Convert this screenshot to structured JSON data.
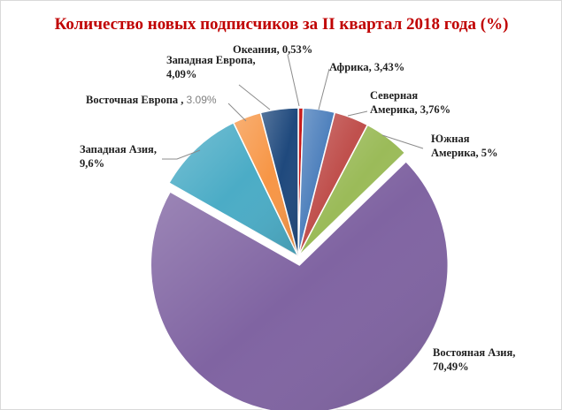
{
  "chart_data": {
    "type": "pie",
    "title": "Количество новых подписчиков за II квартал 2018 года (%)",
    "slices": [
      {
        "label": "Океания",
        "value": 0.53,
        "display": "Океания, 0,53%",
        "color": "#c00000"
      },
      {
        "label": "Африка",
        "value": 3.43,
        "display": "Африка, 3,43%",
        "color": "#4f81bd"
      },
      {
        "label": "Северная Америка",
        "value": 3.76,
        "display": "Северная Америка, 3,76%",
        "color": "#c0504d"
      },
      {
        "label": "Южная Америка",
        "value": 5,
        "display": "Южная Америка, 5%",
        "color": "#9bbb59"
      },
      {
        "label": "Востояная Азия",
        "value": 70.49,
        "display": "Востояная Азия, 70,49%",
        "color": "#8064a2"
      },
      {
        "label": "Западная Азия",
        "value": 9.6,
        "display": "Западная Азия, 9,6%",
        "color": "#4bacc6"
      },
      {
        "label": "Восточная Европа",
        "value": 3.09,
        "display": "Восточная Европа , 3.09%",
        "color": "#f79646"
      },
      {
        "label": "Западная Европа",
        "value": 4.09,
        "display": "Западная Европа, 4,09%",
        "color": "#1f497d"
      }
    ],
    "title_color": "#c00000"
  },
  "labels": {
    "oceania": "Океания, 0,53%",
    "africa": "Африка, 3,43%",
    "north_america_1": "Северная",
    "north_america_2": "Америка, 3,76%",
    "south_america_1": "Южная",
    "south_america_2": "Америка, 5%",
    "east_asia_1": "Востояная Азия,",
    "east_asia_2": "70,49%",
    "west_asia_1": "Западная Азия,",
    "west_asia_2": "9,6%",
    "east_europe_name": "Восточная Европа",
    "east_europe_sep": " , ",
    "east_europe_value": "3.09%",
    "west_europe_1": "Западная Европа,",
    "west_europe_2": "4,09%"
  }
}
